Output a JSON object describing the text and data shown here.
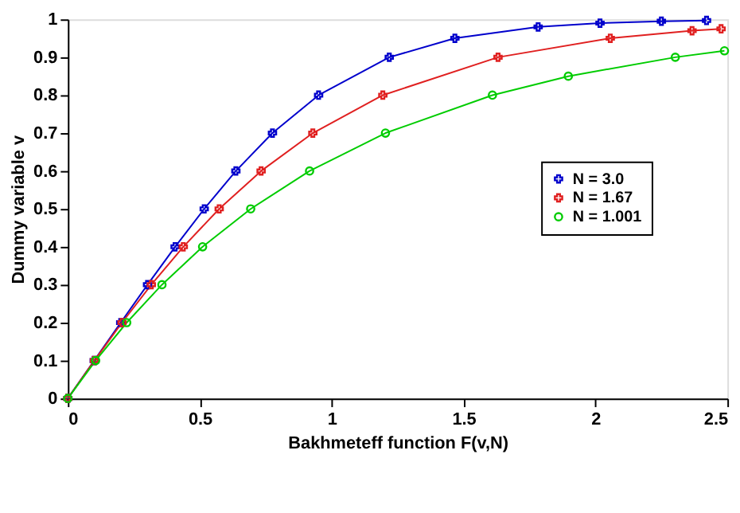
{
  "chart_data": {
    "type": "line",
    "xlabel": "Bakhmeteff function F(v,N)",
    "ylabel": "Dummy variable v",
    "xlim": [
      0,
      2.5
    ],
    "ylim": [
      0,
      1
    ],
    "xticks": [
      0,
      0.5,
      1,
      1.5,
      2,
      2.5
    ],
    "yticks": [
      0,
      0.1,
      0.2,
      0.3,
      0.4,
      0.5,
      0.6,
      0.7,
      0.8,
      0.9,
      1
    ],
    "grid": false,
    "legend": "right",
    "series": [
      {
        "name": "N = 3.0",
        "color": "#0000cc",
        "marker": "cross",
        "x": [
          0,
          0.1,
          0.2004,
          0.3021,
          0.4066,
          0.5169,
          0.6369,
          0.7756,
          0.9505,
          1.2184,
          1.4671,
          1.7827,
          2.0172,
          2.2499,
          2.421
        ],
        "values": [
          0,
          0.1,
          0.2,
          0.3,
          0.4,
          0.5,
          0.6,
          0.7,
          0.8,
          0.9,
          0.95,
          0.98,
          0.99,
          0.995,
          0.997
        ]
      },
      {
        "name": "N = 1.67",
        "color": "#e02020",
        "marker": "cross",
        "x": [
          0,
          0.1008,
          0.2053,
          0.3164,
          0.4376,
          0.5737,
          0.7326,
          0.9287,
          1.194,
          1.6306,
          2.0561,
          2.366,
          2.4762
        ],
        "values": [
          0,
          0.1,
          0.2,
          0.3,
          0.4,
          0.5,
          0.6,
          0.7,
          0.8,
          0.9,
          0.95,
          0.97,
          0.975
        ]
      },
      {
        "name": "N = 1.001",
        "color": "#00cc00",
        "marker": "circle",
        "x": [
          0,
          0.1054,
          0.2231,
          0.3567,
          0.5108,
          0.6931,
          0.9163,
          1.204,
          1.6094,
          1.8971,
          2.3026,
          2.4889
        ],
        "values": [
          0,
          0.1,
          0.2,
          0.3,
          0.4,
          0.5,
          0.6,
          0.7,
          0.8,
          0.85,
          0.9,
          0.917
        ]
      }
    ]
  }
}
